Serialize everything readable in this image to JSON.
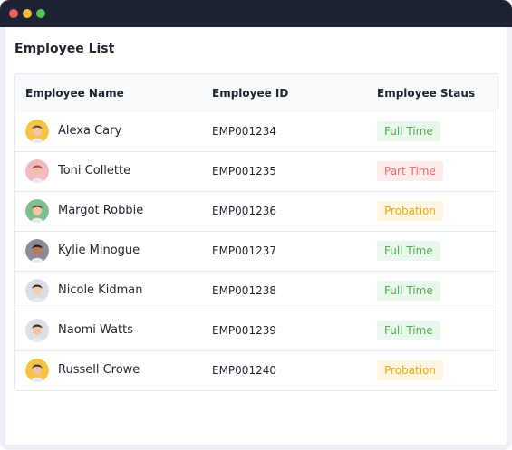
{
  "page": {
    "title": "Employee List"
  },
  "table": {
    "headers": {
      "name": "Employee Name",
      "id": "Employee ID",
      "status": "Employee Staus"
    },
    "rows": [
      {
        "name": "Alexa Cary",
        "id": "EMP001234",
        "status": "Full Time",
        "status_type": "full"
      },
      {
        "name": "Toni Collette",
        "id": "EMP001235",
        "status": "Part Time",
        "status_type": "part"
      },
      {
        "name": "Margot Robbie",
        "id": "EMP001236",
        "status": "Probation",
        "status_type": "prob"
      },
      {
        "name": "Kylie Minogue",
        "id": "EMP001237",
        "status": "Full Time",
        "status_type": "full"
      },
      {
        "name": "Nicole Kidman",
        "id": "EMP001238",
        "status": "Full Time",
        "status_type": "full"
      },
      {
        "name": "Naomi Watts",
        "id": "EMP001239",
        "status": "Full Time",
        "status_type": "full"
      },
      {
        "name": "Russell Crowe",
        "id": "EMP001240",
        "status": "Probation",
        "status_type": "prob"
      }
    ]
  },
  "colors": {
    "titlebar": "#1e2235",
    "full_time": "#4caf50",
    "part_time": "#ef6b6b",
    "probation": "#f3a712",
    "avatar_backgrounds": [
      "#f6c445",
      "#f3b9c0",
      "#7fbf8f",
      "#8e8a96",
      "#d9dde6",
      "#dcdfe6",
      "#f6c445"
    ]
  }
}
